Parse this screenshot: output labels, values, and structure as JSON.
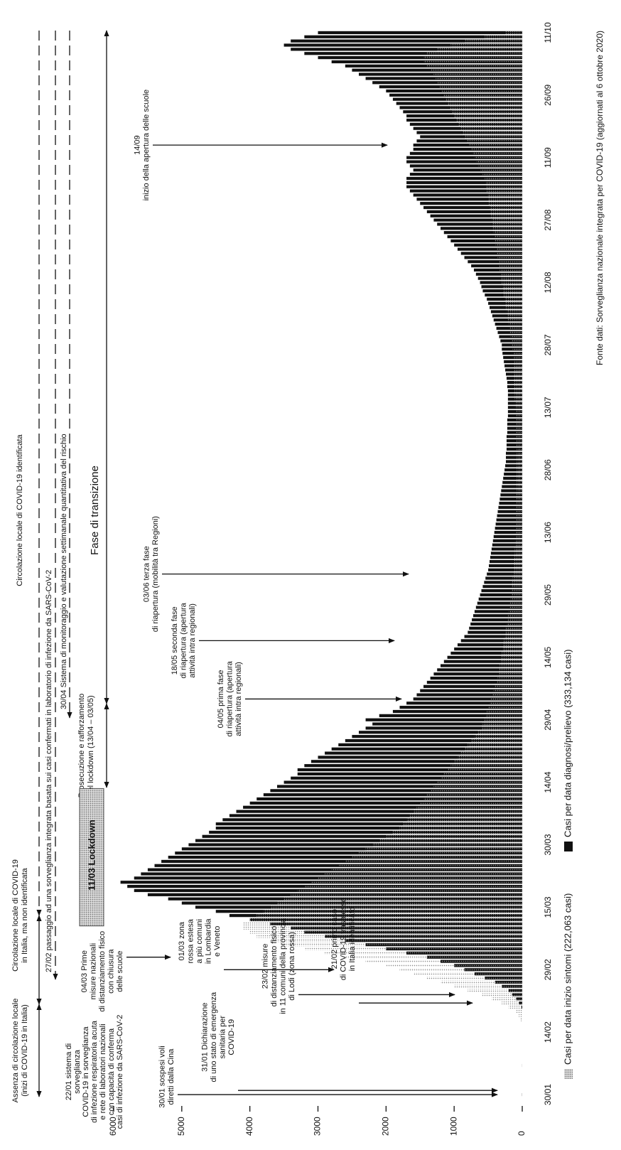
{
  "chart_data": {
    "type": "bar",
    "categories": [
      "30/01",
      null,
      null,
      null,
      null,
      null,
      null,
      null,
      null,
      null,
      null,
      null,
      null,
      null,
      null,
      "14/02",
      null,
      null,
      null,
      null,
      null,
      null,
      null,
      null,
      null,
      null,
      null,
      null,
      null,
      null,
      "29/02",
      null,
      null,
      null,
      null,
      null,
      null,
      null,
      null,
      null,
      null,
      null,
      null,
      null,
      null,
      "15/03",
      null,
      null,
      null,
      null,
      null,
      null,
      null,
      null,
      null,
      null,
      null,
      null,
      null,
      null,
      "30/03",
      null,
      null,
      null,
      null,
      null,
      null,
      null,
      null,
      null,
      null,
      null,
      null,
      null,
      null,
      "14/04",
      null,
      null,
      null,
      null,
      null,
      null,
      null,
      null,
      null,
      null,
      null,
      null,
      null,
      null,
      "29/04",
      null,
      null,
      null,
      null,
      null,
      null,
      null,
      null,
      null,
      null,
      null,
      null,
      null,
      null,
      "14/05",
      null,
      null,
      null,
      null,
      null,
      null,
      null,
      null,
      null,
      null,
      null,
      null,
      null,
      null,
      "29/05",
      null,
      null,
      null,
      null,
      null,
      null,
      null,
      null,
      null,
      null,
      null,
      null,
      null,
      null,
      "13/06",
      null,
      null,
      null,
      null,
      null,
      null,
      null,
      null,
      null,
      null,
      null,
      null,
      null,
      null,
      "28/06",
      null,
      null,
      null,
      null,
      null,
      null,
      null,
      null,
      null,
      null,
      null,
      null,
      null,
      null,
      "13/07",
      null,
      null,
      null,
      null,
      null,
      null,
      null,
      null,
      null,
      null,
      null,
      null,
      null,
      null,
      "28/07",
      null,
      null,
      null,
      null,
      null,
      null,
      null,
      null,
      null,
      null,
      null,
      null,
      null,
      null,
      "12/08",
      null,
      null,
      null,
      null,
      null,
      null,
      null,
      null,
      null,
      null,
      null,
      null,
      null,
      null,
      "27/08",
      null,
      null,
      null,
      null,
      null,
      null,
      null,
      null,
      null,
      null,
      null,
      null,
      null,
      null,
      "11/09",
      null,
      null,
      null,
      null,
      null,
      null,
      null,
      null,
      null,
      null,
      null,
      null,
      null,
      null,
      "26/09",
      null,
      null,
      null,
      null,
      null,
      null,
      null,
      null,
      null,
      null,
      null,
      null,
      null,
      null,
      "11/10"
    ],
    "series": [
      {
        "name": "Casi per data diagnosi/prelievo (333,134 casi)",
        "color": "#111111",
        "values": [
          2,
          0,
          0,
          0,
          0,
          0,
          0,
          1,
          0,
          0,
          0,
          0,
          0,
          0,
          0,
          0,
          0,
          0,
          0,
          0,
          0,
          10,
          50,
          90,
          150,
          200,
          300,
          400,
          550,
          700,
          850,
          1000,
          1200,
          1400,
          1700,
          2000,
          2300,
          2600,
          2900,
          3200,
          3400,
          3700,
          4000,
          4300,
          4500,
          4800,
          5000,
          5200,
          5500,
          5700,
          5800,
          5900,
          5700,
          5600,
          5500,
          5400,
          5300,
          5200,
          5100,
          5000,
          4900,
          4800,
          4700,
          4600,
          4500,
          4500,
          4400,
          4300,
          4200,
          4100,
          4000,
          3900,
          3800,
          3700,
          3600,
          3500,
          3400,
          3300,
          3300,
          3200,
          3100,
          3000,
          2900,
          2800,
          2700,
          2600,
          2500,
          2400,
          2300,
          2200,
          2300,
          2100,
          1900,
          1800,
          1700,
          1600,
          1550,
          1500,
          1450,
          1400,
          1350,
          1300,
          1250,
          1200,
          1150,
          1100,
          1050,
          1000,
          950,
          900,
          850,
          800,
          780,
          760,
          740,
          720,
          700,
          680,
          660,
          640,
          620,
          600,
          580,
          560,
          540,
          520,
          500,
          490,
          480,
          470,
          460,
          450,
          440,
          430,
          420,
          410,
          400,
          390,
          380,
          370,
          360,
          350,
          340,
          330,
          320,
          310,
          300,
          290,
          280,
          270,
          260,
          250,
          240,
          240,
          240,
          230,
          230,
          230,
          230,
          220,
          220,
          220,
          220,
          210,
          210,
          210,
          210,
          210,
          210,
          210,
          220,
          220,
          230,
          240,
          250,
          260,
          270,
          280,
          290,
          300,
          300,
          320,
          340,
          360,
          380,
          400,
          420,
          440,
          460,
          480,
          500,
          520,
          550,
          580,
          600,
          620,
          650,
          680,
          710,
          750,
          800,
          850,
          900,
          950,
          1000,
          1050,
          1100,
          1150,
          1200,
          1250,
          1300,
          1350,
          1400,
          1450,
          1500,
          1550,
          1600,
          1650,
          1700,
          1700,
          1700,
          1650,
          1600,
          1650,
          1700,
          1700,
          1650,
          1600,
          1600,
          1550,
          1500,
          1550,
          1600,
          1650,
          1700,
          1700,
          1750,
          1800,
          1850,
          1900,
          1950,
          2000,
          2100,
          2200,
          2300,
          2400,
          2500,
          2600,
          2800,
          3000,
          3200,
          3400,
          3500,
          3400,
          3200,
          3000
        ]
      },
      {
        "name": "Casi per data inizio sintomi (222,063 casi)",
        "color": "#777777",
        "values": [
          0,
          0,
          0,
          0,
          0,
          0,
          0,
          0,
          0,
          0,
          0,
          0,
          0,
          0,
          0,
          0,
          0,
          0,
          20,
          50,
          100,
          200,
          300,
          450,
          600,
          800,
          1000,
          1200,
          1400,
          1600,
          1800,
          2000,
          2300,
          2600,
          2900,
          3200,
          3500,
          3700,
          3900,
          4000,
          4100,
          4100,
          4000,
          3900,
          3800,
          3700,
          3600,
          3500,
          3400,
          3300,
          3200,
          3100,
          3000,
          2900,
          2800,
          2700,
          2600,
          2500,
          2400,
          2300,
          2200,
          2100,
          2000,
          1900,
          1800,
          1750,
          1700,
          1650,
          1600,
          1550,
          1500,
          1450,
          1400,
          1350,
          1300,
          1250,
          1200,
          1150,
          1100,
          1050,
          1000,
          950,
          900,
          850,
          800,
          750,
          700,
          650,
          600,
          580,
          560,
          540,
          520,
          500,
          480,
          460,
          440,
          420,
          400,
          380,
          360,
          350,
          340,
          330,
          320,
          310,
          300,
          290,
          280,
          270,
          260,
          250,
          240,
          230,
          220,
          210,
          200,
          190,
          180,
          170,
          160,
          155,
          150,
          145,
          140,
          135,
          130,
          125,
          120,
          115,
          110,
          110,
          105,
          105,
          100,
          100,
          100,
          95,
          95,
          90,
          90,
          90,
          85,
          85,
          85,
          80,
          80,
          80,
          80,
          80,
          80,
          80,
          80,
          80,
          80,
          80,
          85,
          85,
          90,
          90,
          95,
          95,
          100,
          100,
          100,
          105,
          105,
          110,
          110,
          115,
          115,
          120,
          120,
          125,
          125,
          130,
          130,
          135,
          135,
          140,
          150,
          160,
          170,
          180,
          190,
          200,
          210,
          220,
          230,
          240,
          250,
          260,
          270,
          280,
          290,
          300,
          310,
          320,
          330,
          340,
          350,
          360,
          370,
          380,
          390,
          400,
          410,
          420,
          430,
          440,
          450,
          460,
          470,
          480,
          490,
          500,
          510,
          520,
          530,
          540,
          550,
          580,
          610,
          640,
          670,
          700,
          730,
          760,
          790,
          820,
          850,
          880,
          910,
          940,
          970,
          1000,
          1030,
          1060,
          1090,
          1120,
          1150,
          1180,
          1210,
          1240,
          1270,
          1300,
          1350,
          1400,
          1450,
          1450,
          1400,
          1250,
          1050,
          850,
          550,
          250
        ]
      }
    ],
    "ylim": [
      0,
      6000
    ],
    "yticks": [
      0,
      1000,
      2000,
      3000,
      4000,
      5000,
      6000
    ],
    "grid": false,
    "lockdown_label": "11/03 Lockdown",
    "phases": [
      {
        "lines": [
          "Assenza di circolazione locale",
          "(inizi di COVID-19 in Italia)"
        ]
      },
      {
        "lines": [
          "Circolazione locale di COVID-19",
          "in Italia, ma non identificata"
        ]
      },
      {
        "lines": [
          "Circolazione locale di COVID-19 identificata"
        ]
      },
      {
        "lines": [
          "27/02 passaggio ad una sorveglianza integrata basata sui casi confermati in laboratorio di infezione da SARS-CoV-2"
        ]
      },
      {
        "lines": [
          "30/04 Sistema di monitoraggio e valutazione settimanale quantitativa del rischio"
        ]
      },
      {
        "lines": [
          "Prosecuzione e rafforzamento",
          "del lockdown (13/04 – 03/05)"
        ]
      },
      {
        "lines": [
          "Fase di transizione"
        ]
      }
    ],
    "events": [
      {
        "lines": [
          "22/01 sistema di",
          "sorveglianza",
          "COVID-19 in sorveglianza",
          "di infezione respiratoria acuta",
          "e rete di laboratori nazionali",
          "con capacità di conferma",
          "casi di infezione da SARS-CoV-2"
        ]
      },
      {
        "lines": [
          "30/01 sospesi voli",
          "diretti dalla Cina"
        ]
      },
      {
        "lines": [
          "31/01 Dichiarazione",
          "di uno stato di emergenza",
          "sanitaria per",
          "COVID-19"
        ]
      },
      {
        "lines": [
          "21/02 primo caso",
          "di COVID-19 trasmesso",
          "in Italia identificato"
        ]
      },
      {
        "lines": [
          "23/02 misure",
          "di distanziamento fisico",
          "in 11 comuni della provincia",
          "di Lodi (zona rossa)"
        ]
      },
      {
        "lines": [
          "01/03 zona",
          "rossa estesa",
          "a più comuni",
          "in Lombardia",
          "e Veneto"
        ]
      },
      {
        "lines": [
          "04/03 Prime",
          "misure nazionali",
          "di distanziamento fisico",
          "con chiusura",
          "delle scuole"
        ]
      },
      {
        "lines": [
          "04/05 prima fase",
          "di riapertura (apertura",
          "attività intra regionali)"
        ]
      },
      {
        "lines": [
          "18/05 seconda fase",
          "di riapertura (apertura",
          "attività intra regionali)"
        ]
      },
      {
        "lines": [
          "03/06 terza fase",
          "di riapertura (mobilità tra Regioni)"
        ]
      },
      {
        "lines": [
          "14/09",
          "inizio della apertura delle scuole"
        ]
      }
    ],
    "source": "Fonte dati: Sorveglianza nazionale integrata per COVID-19 (aggiornati al 6 ottobre 2020)"
  }
}
